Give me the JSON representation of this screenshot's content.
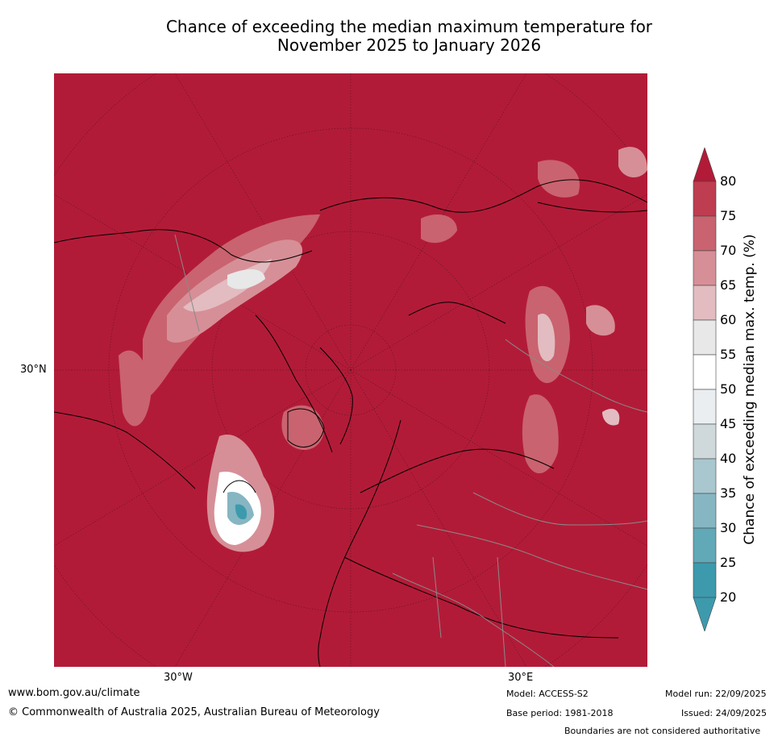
{
  "title": {
    "line1": "Chance of exceeding the median maximum temperature for",
    "line2": "November 2025 to January 2026"
  },
  "map": {
    "projection": "north-polar-stereographic",
    "background_color": "#b21b38",
    "lat_labels": [
      "30°N"
    ],
    "lon_labels": [
      "30°W",
      "30°E"
    ]
  },
  "colorbar": {
    "label": "Chance of exceeding median max. temp. (%)",
    "ticks": [
      "80",
      "75",
      "70",
      "65",
      "60",
      "55",
      "50",
      "45",
      "40",
      "35",
      "30",
      "25",
      "20"
    ],
    "colors": [
      "#b21b38",
      "#be3d50",
      "#c9636f",
      "#d68f97",
      "#e2bcc0",
      "#e8e8e8",
      "#ffffff",
      "#eaeef1",
      "#cfd9dc",
      "#a9c7ce",
      "#86b6c2",
      "#61a9b7",
      "#3d9aad"
    ]
  },
  "footer": {
    "website": "www.bom.gov.au/climate",
    "copyright": "© Commonwealth of Australia 2025, Australian Bureau of Meteorology",
    "model": "Model: ACCESS-S2",
    "base_period": "Base period: 1981-2018",
    "model_run": "Model run: 22/09/2025",
    "issued": "Issued: 24/09/2025",
    "disclaimer": "Boundaries are not considered authoritative"
  }
}
